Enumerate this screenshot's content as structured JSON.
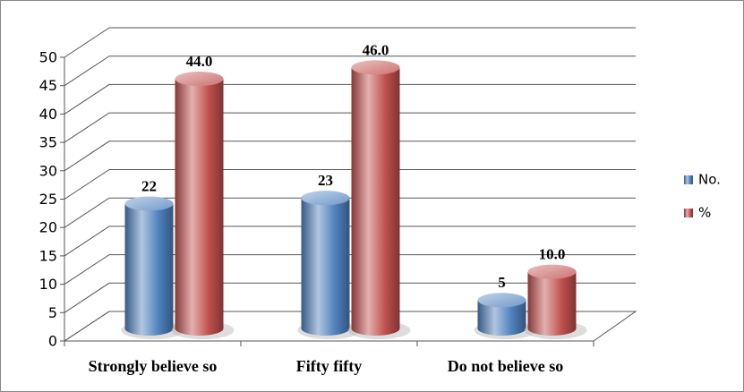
{
  "chart_data": {
    "type": "bar3d",
    "categories": [
      "Strongly believe so",
      "Fifty fifty",
      "Do not believe so"
    ],
    "series": [
      {
        "name": "No.",
        "color": "#4f81bd",
        "values": [
          22,
          23,
          5
        ]
      },
      {
        "name": "%",
        "color": "#c0504d",
        "values": [
          44,
          46,
          10
        ],
        "value_labels": [
          "44.0",
          "46.0",
          "10.0"
        ]
      }
    ],
    "ylim": [
      0,
      50
    ],
    "yticks": [
      0,
      5,
      10,
      15,
      20,
      25,
      30,
      35,
      40,
      45,
      50
    ],
    "grid": true,
    "legend": "right"
  }
}
